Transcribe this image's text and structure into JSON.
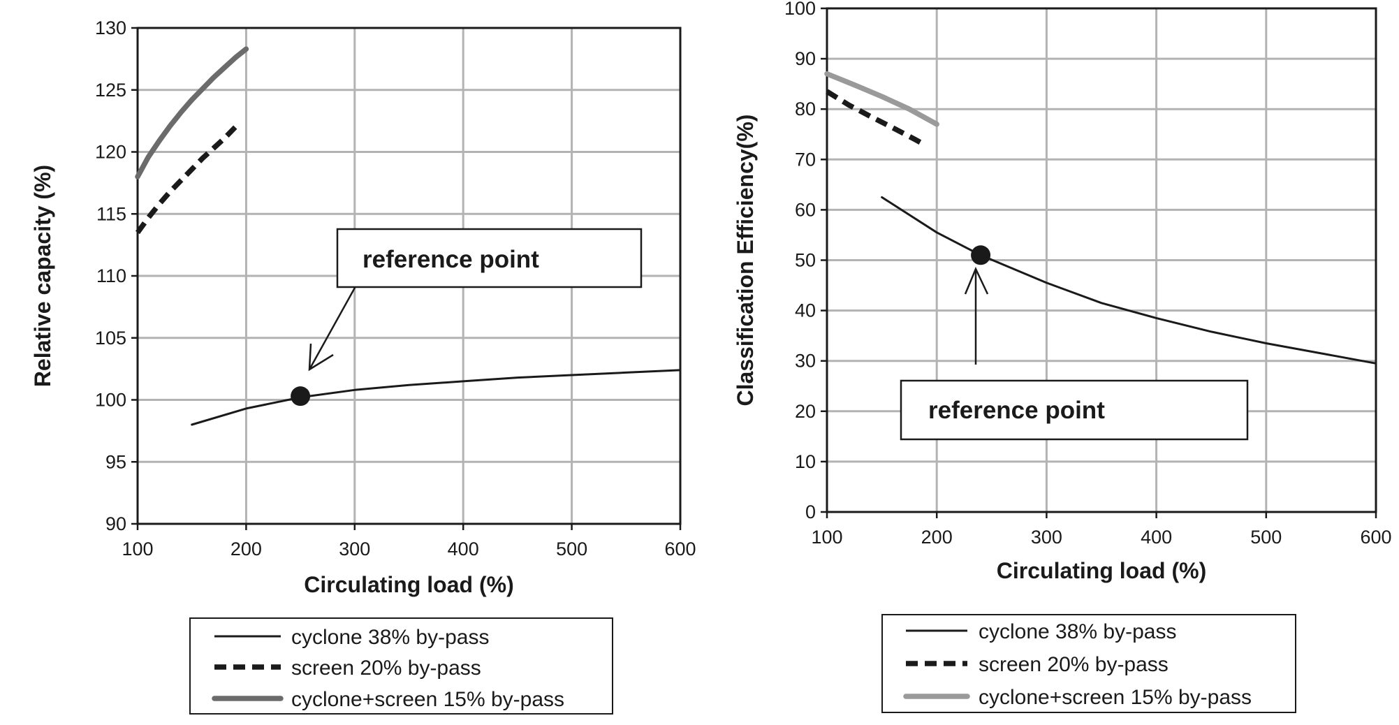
{
  "chart_data": [
    {
      "type": "line",
      "xlabel": "Circulating load (%)",
      "ylabel": "Relative capacity (%)",
      "xlim": [
        100,
        600
      ],
      "ylim": [
        90,
        130
      ],
      "xticks": [
        100,
        200,
        300,
        400,
        500,
        600
      ],
      "yticks": [
        90,
        95,
        100,
        105,
        110,
        115,
        120,
        125,
        130
      ],
      "grid": true,
      "legend": "below",
      "annotation": {
        "label": "reference point",
        "x": 250,
        "y": 100.3
      },
      "series": [
        {
          "name": "cyclone 38% by-pass",
          "color": "#1a1a1a",
          "x": [
            150,
            200,
            250,
            300,
            350,
            400,
            450,
            500,
            550,
            600
          ],
          "y": [
            98.0,
            99.3,
            100.2,
            100.8,
            101.2,
            101.5,
            101.8,
            102.0,
            102.2,
            102.4
          ]
        },
        {
          "name": "screen 20% by-pass",
          "color": "#1a1a1a",
          "x": [
            100,
            110,
            120,
            130,
            140,
            150,
            160,
            170,
            180,
            190
          ],
          "y": [
            113.5,
            114.7,
            115.8,
            116.8,
            117.7,
            118.6,
            119.5,
            120.3,
            121.1,
            122.0
          ]
        },
        {
          "name": "cyclone+screen 15% by-pass",
          "color": "#6b6b6b",
          "x": [
            100,
            110,
            120,
            130,
            140,
            150,
            160,
            170,
            180,
            190,
            200
          ],
          "y": [
            118.0,
            119.6,
            120.9,
            122.1,
            123.2,
            124.2,
            125.1,
            126.0,
            126.8,
            127.6,
            128.3
          ]
        }
      ]
    },
    {
      "type": "line",
      "xlabel": "Circulating load (%)",
      "ylabel": "Classification Efficiency(%)",
      "xlim": [
        100,
        600
      ],
      "ylim": [
        0,
        100
      ],
      "xticks": [
        100,
        200,
        300,
        400,
        500,
        600
      ],
      "yticks": [
        0,
        10,
        20,
        30,
        40,
        50,
        60,
        70,
        80,
        90,
        100
      ],
      "grid": true,
      "legend": "below",
      "annotation": {
        "label": "reference point",
        "x": 240,
        "y": 51
      },
      "series": [
        {
          "name": "cyclone 38% by-pass",
          "color": "#1a1a1a",
          "x": [
            150,
            200,
            240,
            300,
            350,
            400,
            450,
            500,
            550,
            600
          ],
          "y": [
            62.5,
            55.5,
            51.0,
            45.5,
            41.5,
            38.5,
            35.8,
            33.5,
            31.5,
            29.5
          ]
        },
        {
          "name": "screen 20% by-pass",
          "color": "#1a1a1a",
          "x": [
            100,
            120,
            140,
            160,
            180,
            190
          ],
          "y": [
            83.5,
            80.8,
            78.5,
            76.3,
            74.0,
            72.8
          ]
        },
        {
          "name": "cyclone+screen 15% by-pass",
          "color": "#9a9a9a",
          "x": [
            100,
            125,
            150,
            175,
            200
          ],
          "y": [
            87.0,
            84.8,
            82.5,
            80.0,
            77.0
          ]
        }
      ]
    }
  ]
}
